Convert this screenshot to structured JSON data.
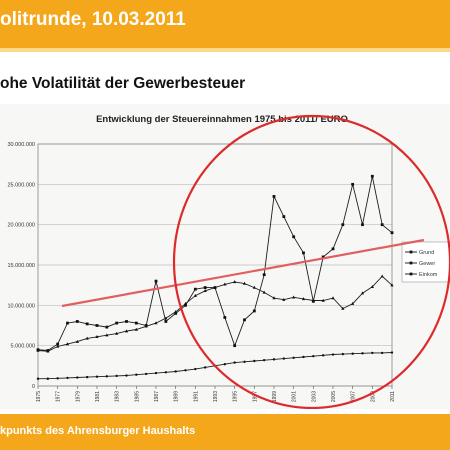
{
  "header": {
    "title": "olitrunde, 10.03.2011"
  },
  "slide": {
    "subtitle": "ohe Volatilität der Gewerbesteuer",
    "footer": "kpunkts des Ahrensburger Haushalts"
  },
  "chart_data": {
    "type": "line",
    "title": "Entwicklung der Steuereinnahmen 1975 bis 2011/ EURO",
    "x": [
      1975,
      1976,
      1977,
      1978,
      1979,
      1980,
      1981,
      1982,
      1983,
      1984,
      1985,
      1986,
      1987,
      1988,
      1989,
      1990,
      1991,
      1992,
      1993,
      1994,
      1995,
      1996,
      1997,
      1998,
      1999,
      2000,
      2001,
      2002,
      2003,
      2004,
      2005,
      2006,
      2007,
      2008,
      2009,
      2010,
      2011
    ],
    "x_tick_labels": [
      "1975",
      "1977",
      "1979",
      "1981",
      "1983",
      "1985",
      "1987",
      "1989",
      "1991",
      "1993",
      "1995",
      "1997",
      "1999",
      "2001",
      "2003",
      "2005",
      "2007",
      "2009",
      "2011"
    ],
    "y_tick_labels": [
      "0",
      "5.000.000",
      "10.000.000",
      "15.000.000",
      "20.000.000",
      "25.000.000",
      "30.000.000"
    ],
    "ylim": [
      0,
      30000000
    ],
    "grid": true,
    "legend_placement": "right",
    "series": [
      {
        "name": "Grund",
        "values": [
          900000,
          900000,
          950000,
          1000000,
          1050000,
          1100000,
          1150000,
          1200000,
          1250000,
          1300000,
          1400000,
          1500000,
          1600000,
          1700000,
          1800000,
          1950000,
          2100000,
          2300000,
          2500000,
          2700000,
          2900000,
          3000000,
          3100000,
          3200000,
          3300000,
          3400000,
          3500000,
          3600000,
          3700000,
          3800000,
          3900000,
          3950000,
          4000000,
          4050000,
          4100000,
          4100000,
          4150000
        ]
      },
      {
        "name": "Gewer",
        "values": [
          4500000,
          4400000,
          5200000,
          7800000,
          8000000,
          7700000,
          7500000,
          7300000,
          7800000,
          8000000,
          7800000,
          7500000,
          13000000,
          8000000,
          9000000,
          10000000,
          12000000,
          12200000,
          12200000,
          8500000,
          5000000,
          8200000,
          9300000,
          13800000,
          23500000,
          21000000,
          18500000,
          16500000,
          10500000,
          16000000,
          17000000,
          20000000,
          25000000,
          20000000,
          26000000,
          20000000,
          19000000
        ]
      },
      {
        "name": "Einkom",
        "values": [
          4400000,
          4300000,
          4900000,
          5200000,
          5500000,
          5900000,
          6100000,
          6300000,
          6500000,
          6800000,
          7000000,
          7400000,
          7800000,
          8400000,
          9200000,
          10200000,
          11200000,
          11800000,
          12200000,
          12600000,
          12900000,
          12700000,
          12200000,
          11600000,
          10900000,
          10700000,
          11000000,
          10800000,
          10600000,
          10600000,
          10900000,
          9600000,
          10200000,
          11500000,
          12300000,
          13600000,
          12500000
        ]
      }
    ],
    "annotation_colors": {
      "ellipse": "#dd2a2a",
      "trend_line": "#e06060"
    }
  }
}
